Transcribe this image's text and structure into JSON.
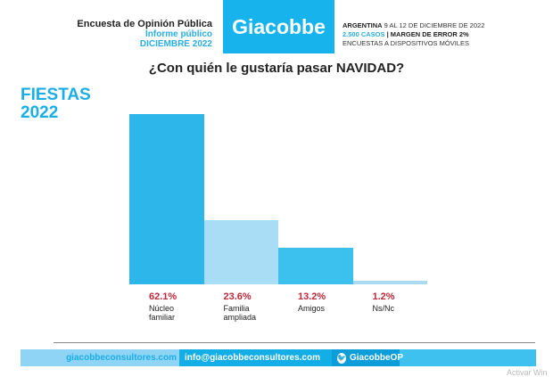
{
  "header": {
    "survey_title": "Encuesta de Opinión Pública",
    "report": "Informe público",
    "date": "DICIEMBRE 2022",
    "logo": "Giacobbe",
    "line1_bold": "ARGENTINA",
    "line1_rest": " 9 AL 12 DE DICIEMBRE DE 2022",
    "cases": "2.500 CASOS",
    "margin": " | MARGEN DE ERROR 2%",
    "method": "ENCUESTAS A DISPOSITIVOS MÓVILES"
  },
  "badge": {
    "line1": "FIESTAS",
    "line2": "2022"
  },
  "chart_data": {
    "type": "bar",
    "title": "¿Con quién le gustaría pasar NAVIDAD?",
    "categories": [
      "Núcleo familiar",
      "Familia ampliada",
      "Amigos",
      "Ns/Nc"
    ],
    "label_lines": [
      [
        "Núcleo",
        "familiar"
      ],
      [
        "Familia",
        "ampliada"
      ],
      [
        "Amigos",
        ""
      ],
      [
        "Ns/Nc",
        ""
      ]
    ],
    "values": [
      62.1,
      23.6,
      13.2,
      1.2
    ],
    "value_labels": [
      "62.1%",
      "23.6%",
      "13.2%",
      "1.2%"
    ],
    "colors": [
      "#2cb6ea",
      "#a8ddf5",
      "#3cc0ee",
      "#a9dcf3"
    ],
    "ylim": [
      0,
      65
    ]
  },
  "footer": {
    "website": "giacobbeconsultores.com",
    "email": "info@giacobbeconsultores.com",
    "twitter": "GiacobbeOP"
  },
  "watermark": "Activar Win"
}
